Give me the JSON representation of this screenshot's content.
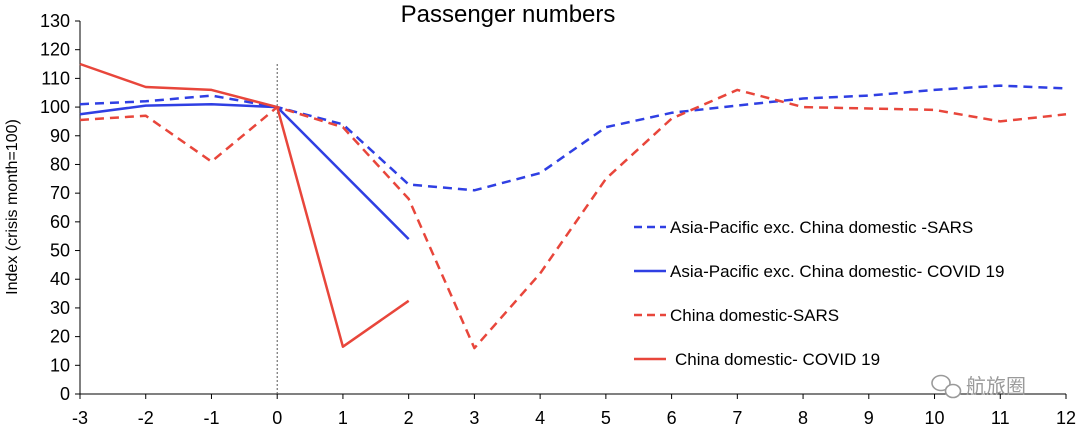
{
  "chart_data": {
    "type": "line",
    "title": "Passenger numbers",
    "xlabel": "",
    "ylabel": "Index (crisis month=100)",
    "xlim": [
      -3,
      12
    ],
    "ylim": [
      0,
      130
    ],
    "x_ticks": [
      -3,
      -2,
      -1,
      0,
      1,
      2,
      3,
      4,
      5,
      6,
      7,
      8,
      9,
      10,
      11,
      12
    ],
    "y_ticks": [
      0,
      10,
      20,
      30,
      40,
      50,
      60,
      70,
      80,
      90,
      100,
      110,
      120,
      130
    ],
    "grid": false,
    "vertical_reference_line_x": 0,
    "legend_position": "right",
    "series": [
      {
        "name": "Asia-Pacific exc. China domestic -SARS",
        "color": "#2f3fe3",
        "dash": "dashed",
        "x": [
          -3,
          -2,
          -1,
          0,
          1,
          2,
          3,
          4,
          5,
          6,
          7,
          8,
          9,
          10,
          11,
          12
        ],
        "y": [
          101,
          102,
          104,
          100,
          94,
          73,
          71,
          77,
          93,
          98,
          100.5,
          103,
          104,
          106,
          107.5,
          106.5
        ]
      },
      {
        "name": "Asia-Pacific exc. China domestic- COVID 19",
        "color": "#2f3fe3",
        "dash": "solid",
        "x": [
          -3,
          -2,
          -1,
          0,
          1,
          2
        ],
        "y": [
          97.5,
          100.5,
          101,
          100,
          77,
          54
        ]
      },
      {
        "name": "China domestic-SARS",
        "color": "#e8463b",
        "dash": "dashed",
        "x": [
          -3,
          -2,
          -1,
          0,
          1,
          2,
          3,
          4,
          5,
          6,
          7,
          8,
          9,
          10,
          11,
          12
        ],
        "y": [
          95.5,
          97,
          81,
          100,
          93,
          68,
          16,
          42,
          75,
          96,
          106,
          100,
          99.5,
          99,
          95,
          97.5
        ]
      },
      {
        "name": "China domestic- COVID 19",
        "color": "#e8463b",
        "dash": "solid",
        "x": [
          -3,
          -2,
          -1,
          0,
          1,
          2
        ],
        "y": [
          115,
          107,
          106,
          100,
          16.5,
          32.5
        ]
      }
    ]
  },
  "watermark": {
    "text": "航旅圈",
    "icon": "wechat-icon"
  }
}
